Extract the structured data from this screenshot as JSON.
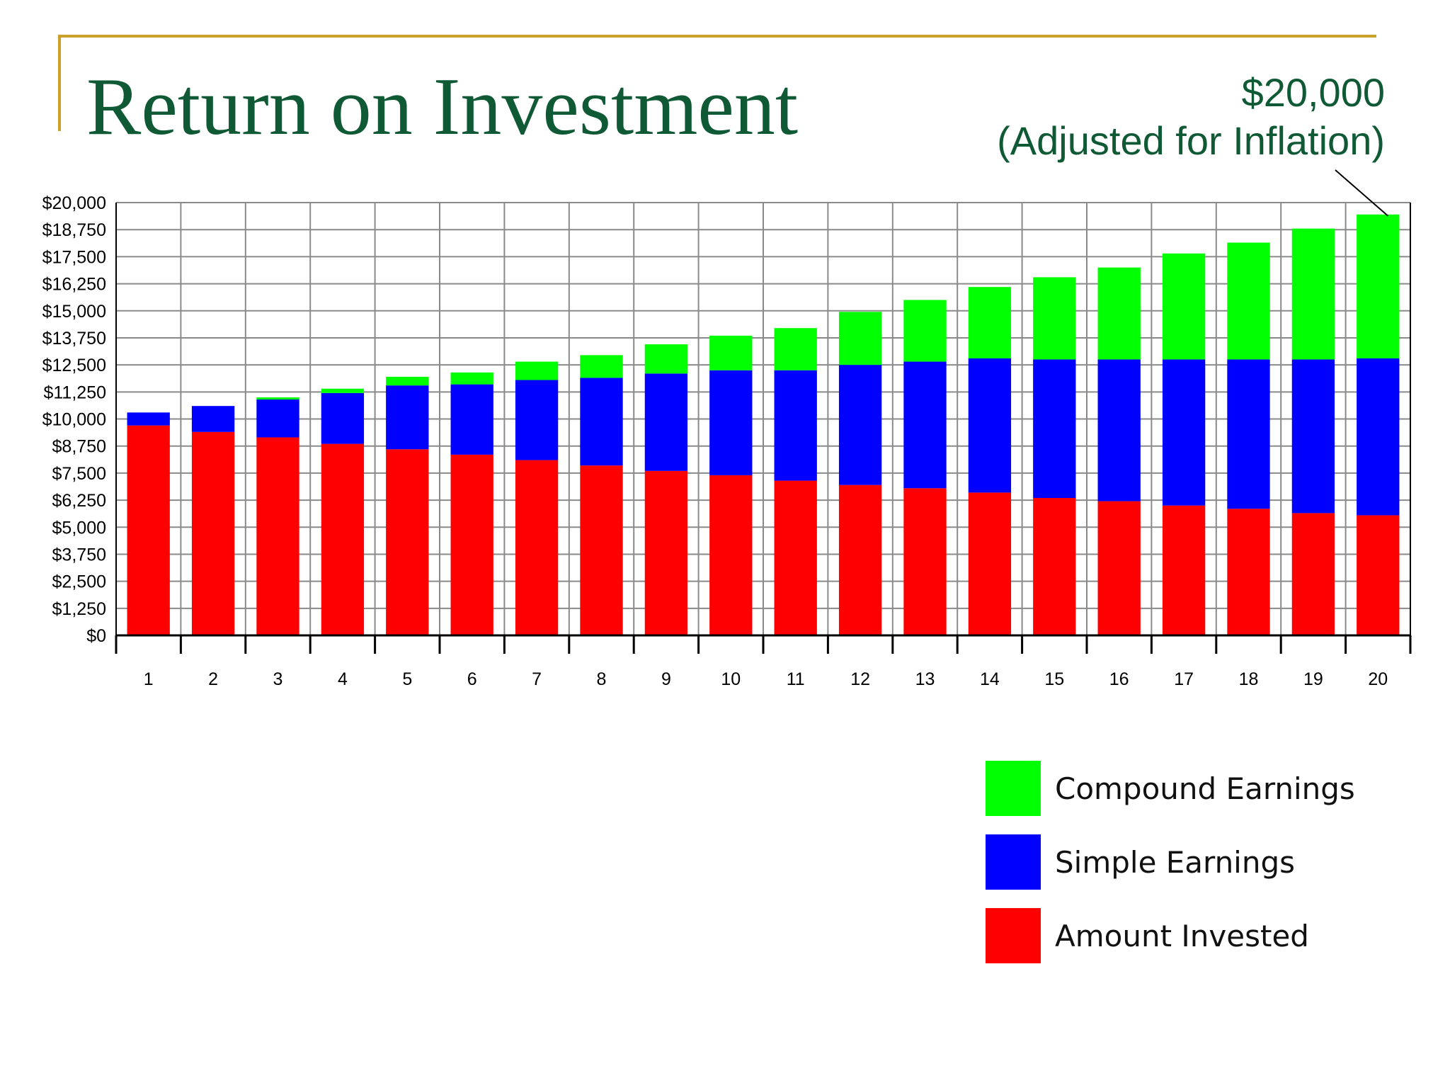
{
  "slide": {
    "title": "Return on Investment",
    "callout_line1": "$20,000",
    "callout_line2": "(Adjusted for Inflation)",
    "title_color": "#0f5a35",
    "accent_color": "#c9a227"
  },
  "chart_data": {
    "type": "bar",
    "stacked": true,
    "categories": [
      "1",
      "2",
      "3",
      "4",
      "5",
      "6",
      "7",
      "8",
      "9",
      "10",
      "11",
      "12",
      "13",
      "14",
      "15",
      "16",
      "17",
      "18",
      "19",
      "20"
    ],
    "series": [
      {
        "name": "Amount Invested",
        "color": "#ff0000",
        "values": [
          9700,
          9400,
          9150,
          8850,
          8600,
          8350,
          8100,
          7850,
          7600,
          7400,
          7150,
          6950,
          6800,
          6600,
          6350,
          6200,
          6000,
          5850,
          5650,
          5550
        ]
      },
      {
        "name": "Simple Earnings",
        "color": "#0000ff",
        "values": [
          600,
          1200,
          1750,
          2350,
          2950,
          3250,
          3700,
          4050,
          4500,
          4850,
          5100,
          5550,
          5850,
          6200,
          6400,
          6550,
          6750,
          6900,
          7100,
          7250
        ]
      },
      {
        "name": "Compound Earnings",
        "color": "#00ff00",
        "values": [
          0,
          0,
          100,
          200,
          400,
          550,
          850,
          1050,
          1350,
          1600,
          1950,
          2450,
          2850,
          3300,
          3800,
          4250,
          4900,
          5400,
          6050,
          6650
        ]
      }
    ],
    "yticks": [
      "$0",
      "$1,250",
      "$2,500",
      "$3,750",
      "$5,000",
      "$6,250",
      "$7,500",
      "$8,750",
      "$10,000",
      "$11,250",
      "$12,500",
      "$13,750",
      "$15,000",
      "$16,250",
      "$17,500",
      "$18,750",
      "$20,000"
    ],
    "ylim": [
      0,
      20000
    ],
    "grid": true,
    "legend_position": "bottom-right",
    "legend_order": [
      "Compound Earnings",
      "Simple Earnings",
      "Amount Invested"
    ]
  }
}
